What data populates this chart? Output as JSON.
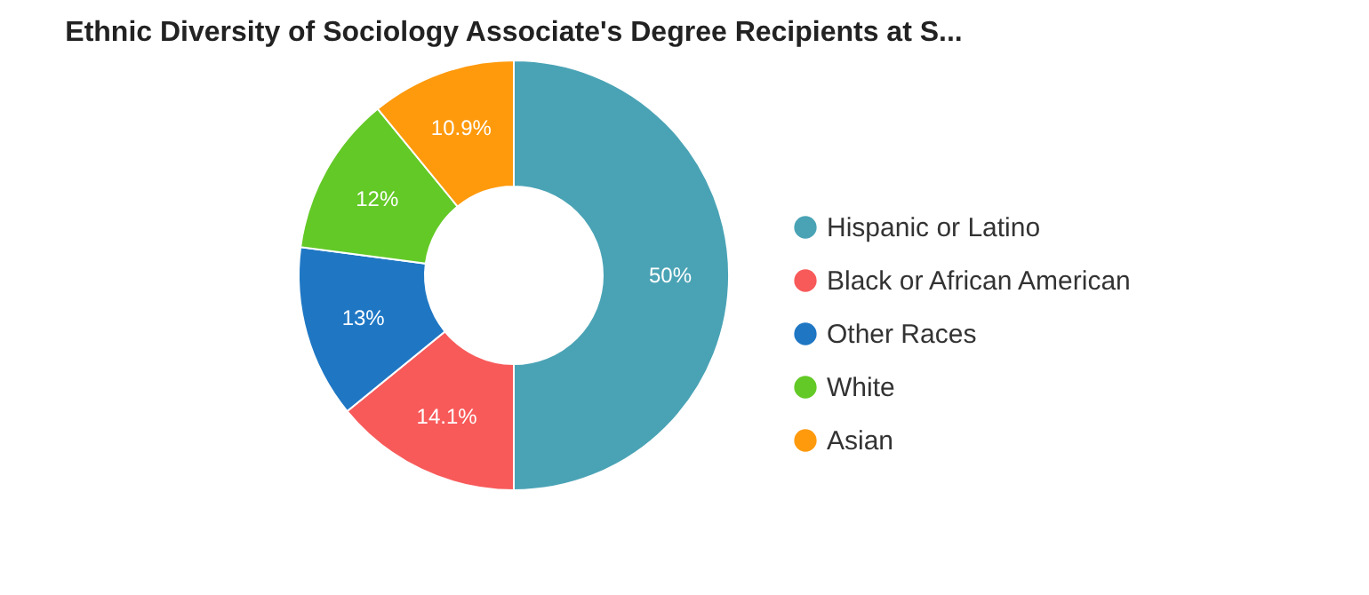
{
  "chart_data": {
    "type": "donut",
    "title": "Ethnic Diversity of Sociology Associate's Degree Recipients at S...",
    "categories": [
      "Hispanic or Latino",
      "Black or African American",
      "Other Races",
      "White",
      "Asian"
    ],
    "values": [
      50,
      14.1,
      13,
      12,
      10.9
    ],
    "value_labels": [
      "50%",
      "14.1%",
      "13%",
      "12%",
      "10.9%"
    ],
    "colors": [
      "#4aa3b5",
      "#f85a5a",
      "#1f77c4",
      "#63c926",
      "#ff9a0d"
    ],
    "legend": "right"
  }
}
